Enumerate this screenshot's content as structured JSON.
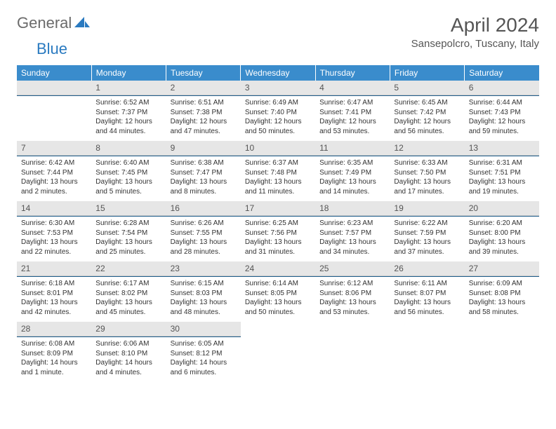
{
  "brand": {
    "text1": "General",
    "text2": "Blue",
    "color1": "#6b6b6b",
    "color2": "#2a7ac0"
  },
  "title": "April 2024",
  "location": "Sansepolcro, Tuscany, Italy",
  "colors": {
    "header_bg": "#3a8ccc",
    "header_fg": "#ffffff",
    "daynum_bg": "#e6e6e6",
    "rule": "#1f5e8c",
    "text": "#333333"
  },
  "weekdays": [
    "Sunday",
    "Monday",
    "Tuesday",
    "Wednesday",
    "Thursday",
    "Friday",
    "Saturday"
  ],
  "weeks": [
    [
      null,
      {
        "n": "1",
        "sr": "6:52 AM",
        "ss": "7:37 PM",
        "dl": "12 hours and 44 minutes."
      },
      {
        "n": "2",
        "sr": "6:51 AM",
        "ss": "7:38 PM",
        "dl": "12 hours and 47 minutes."
      },
      {
        "n": "3",
        "sr": "6:49 AM",
        "ss": "7:40 PM",
        "dl": "12 hours and 50 minutes."
      },
      {
        "n": "4",
        "sr": "6:47 AM",
        "ss": "7:41 PM",
        "dl": "12 hours and 53 minutes."
      },
      {
        "n": "5",
        "sr": "6:45 AM",
        "ss": "7:42 PM",
        "dl": "12 hours and 56 minutes."
      },
      {
        "n": "6",
        "sr": "6:44 AM",
        "ss": "7:43 PM",
        "dl": "12 hours and 59 minutes."
      }
    ],
    [
      {
        "n": "7",
        "sr": "6:42 AM",
        "ss": "7:44 PM",
        "dl": "13 hours and 2 minutes."
      },
      {
        "n": "8",
        "sr": "6:40 AM",
        "ss": "7:45 PM",
        "dl": "13 hours and 5 minutes."
      },
      {
        "n": "9",
        "sr": "6:38 AM",
        "ss": "7:47 PM",
        "dl": "13 hours and 8 minutes."
      },
      {
        "n": "10",
        "sr": "6:37 AM",
        "ss": "7:48 PM",
        "dl": "13 hours and 11 minutes."
      },
      {
        "n": "11",
        "sr": "6:35 AM",
        "ss": "7:49 PM",
        "dl": "13 hours and 14 minutes."
      },
      {
        "n": "12",
        "sr": "6:33 AM",
        "ss": "7:50 PM",
        "dl": "13 hours and 17 minutes."
      },
      {
        "n": "13",
        "sr": "6:31 AM",
        "ss": "7:51 PM",
        "dl": "13 hours and 19 minutes."
      }
    ],
    [
      {
        "n": "14",
        "sr": "6:30 AM",
        "ss": "7:53 PM",
        "dl": "13 hours and 22 minutes."
      },
      {
        "n": "15",
        "sr": "6:28 AM",
        "ss": "7:54 PM",
        "dl": "13 hours and 25 minutes."
      },
      {
        "n": "16",
        "sr": "6:26 AM",
        "ss": "7:55 PM",
        "dl": "13 hours and 28 minutes."
      },
      {
        "n": "17",
        "sr": "6:25 AM",
        "ss": "7:56 PM",
        "dl": "13 hours and 31 minutes."
      },
      {
        "n": "18",
        "sr": "6:23 AM",
        "ss": "7:57 PM",
        "dl": "13 hours and 34 minutes."
      },
      {
        "n": "19",
        "sr": "6:22 AM",
        "ss": "7:59 PM",
        "dl": "13 hours and 37 minutes."
      },
      {
        "n": "20",
        "sr": "6:20 AM",
        "ss": "8:00 PM",
        "dl": "13 hours and 39 minutes."
      }
    ],
    [
      {
        "n": "21",
        "sr": "6:18 AM",
        "ss": "8:01 PM",
        "dl": "13 hours and 42 minutes."
      },
      {
        "n": "22",
        "sr": "6:17 AM",
        "ss": "8:02 PM",
        "dl": "13 hours and 45 minutes."
      },
      {
        "n": "23",
        "sr": "6:15 AM",
        "ss": "8:03 PM",
        "dl": "13 hours and 48 minutes."
      },
      {
        "n": "24",
        "sr": "6:14 AM",
        "ss": "8:05 PM",
        "dl": "13 hours and 50 minutes."
      },
      {
        "n": "25",
        "sr": "6:12 AM",
        "ss": "8:06 PM",
        "dl": "13 hours and 53 minutes."
      },
      {
        "n": "26",
        "sr": "6:11 AM",
        "ss": "8:07 PM",
        "dl": "13 hours and 56 minutes."
      },
      {
        "n": "27",
        "sr": "6:09 AM",
        "ss": "8:08 PM",
        "dl": "13 hours and 58 minutes."
      }
    ],
    [
      {
        "n": "28",
        "sr": "6:08 AM",
        "ss": "8:09 PM",
        "dl": "14 hours and 1 minute."
      },
      {
        "n": "29",
        "sr": "6:06 AM",
        "ss": "8:10 PM",
        "dl": "14 hours and 4 minutes."
      },
      {
        "n": "30",
        "sr": "6:05 AM",
        "ss": "8:12 PM",
        "dl": "14 hours and 6 minutes."
      },
      null,
      null,
      null,
      null
    ]
  ],
  "labels": {
    "sunrise": "Sunrise: ",
    "sunset": "Sunset: ",
    "daylight": "Daylight: "
  }
}
